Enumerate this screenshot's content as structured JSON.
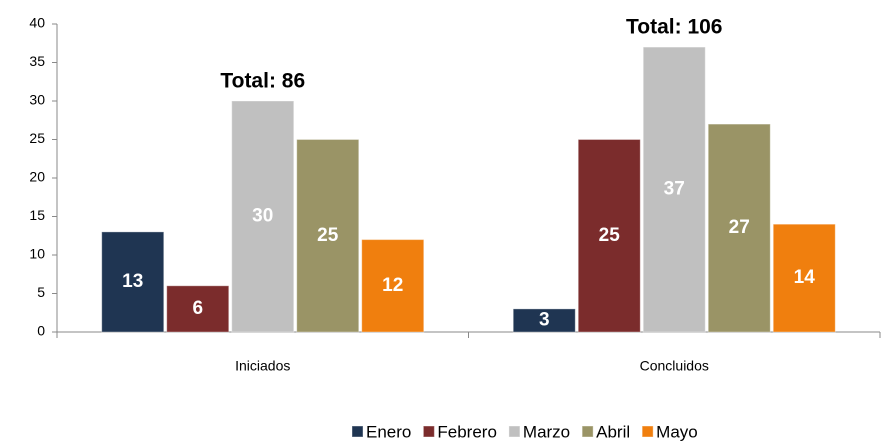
{
  "chart_data": {
    "type": "bar",
    "categories": [
      "Iniciados",
      "Concluidos"
    ],
    "series": [
      {
        "name": "Enero",
        "color": "#1f3552",
        "values": [
          13,
          3
        ]
      },
      {
        "name": "Febrero",
        "color": "#7b2c2c",
        "values": [
          6,
          25
        ]
      },
      {
        "name": "Marzo",
        "color": "#c0c0c0",
        "values": [
          30,
          37
        ]
      },
      {
        "name": "Abril",
        "color": "#9a9466",
        "values": [
          25,
          27
        ]
      },
      {
        "name": "Mayo",
        "color": "#f07f0e",
        "values": [
          12,
          14
        ]
      }
    ],
    "annotations": [
      "Total: 86",
      "Total: 106"
    ],
    "ylim": [
      0,
      40
    ],
    "yticks": [
      0,
      5,
      10,
      15,
      20,
      25,
      30,
      35,
      40
    ],
    "grid": false,
    "legend": "bottom"
  }
}
